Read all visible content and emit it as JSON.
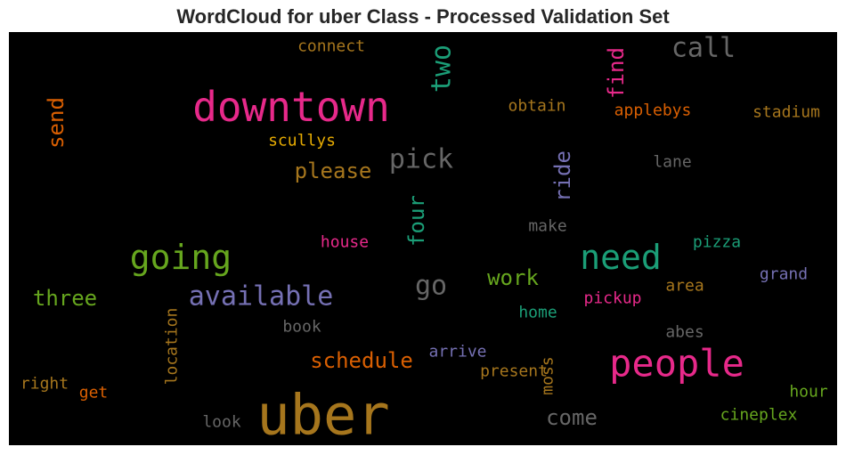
{
  "chart_title": "WordCloud for uber Class - Processed Validation Set",
  "chart_data": {
    "type": "wordcloud",
    "title": "WordCloud for uber Class - Processed Validation Set",
    "background": "#000000",
    "words": [
      {
        "text": "uber",
        "color": "#a6761d",
        "rotated": false
      },
      {
        "text": "downtown",
        "color": "#e7298a",
        "rotated": false
      },
      {
        "text": "people",
        "color": "#e7298a",
        "rotated": false
      },
      {
        "text": "need",
        "color": "#1b9e77",
        "rotated": false
      },
      {
        "text": "going",
        "color": "#66a61e",
        "rotated": false
      },
      {
        "text": "available",
        "color": "#7570b3",
        "rotated": false
      },
      {
        "text": "pick",
        "color": "#666666",
        "rotated": false
      },
      {
        "text": "call",
        "color": "#666666",
        "rotated": false
      },
      {
        "text": "two",
        "color": "#1b9e77",
        "rotated": true
      },
      {
        "text": "go",
        "color": "#666666",
        "rotated": false
      },
      {
        "text": "schedule",
        "color": "#d95f02",
        "rotated": false
      },
      {
        "text": "three",
        "color": "#66a61e",
        "rotated": false
      },
      {
        "text": "come",
        "color": "#666666",
        "rotated": false
      },
      {
        "text": "please",
        "color": "#a6761d",
        "rotated": false
      },
      {
        "text": "four",
        "color": "#1b9e77",
        "rotated": true
      },
      {
        "text": "ride",
        "color": "#7570b3",
        "rotated": true
      },
      {
        "text": "find",
        "color": "#e7298a",
        "rotated": true
      },
      {
        "text": "work",
        "color": "#66a61e",
        "rotated": false
      },
      {
        "text": "send",
        "color": "#d95f02",
        "rotated": true
      },
      {
        "text": "connect",
        "color": "#a6761d",
        "rotated": false
      },
      {
        "text": "obtain",
        "color": "#a6761d",
        "rotated": false
      },
      {
        "text": "applebys",
        "color": "#d95f02",
        "rotated": false
      },
      {
        "text": "stadium",
        "color": "#a6761d",
        "rotated": false
      },
      {
        "text": "scullys",
        "color": "#e6ab02",
        "rotated": false
      },
      {
        "text": "lane",
        "color": "#666666",
        "rotated": false
      },
      {
        "text": "make",
        "color": "#666666",
        "rotated": false
      },
      {
        "text": "house",
        "color": "#e7298a",
        "rotated": false
      },
      {
        "text": "pizza",
        "color": "#1b9e77",
        "rotated": false
      },
      {
        "text": "grand",
        "color": "#7570b3",
        "rotated": false
      },
      {
        "text": "area",
        "color": "#a6761d",
        "rotated": false
      },
      {
        "text": "pickup",
        "color": "#e7298a",
        "rotated": false
      },
      {
        "text": "home",
        "color": "#1b9e77",
        "rotated": false
      },
      {
        "text": "book",
        "color": "#666666",
        "rotated": false
      },
      {
        "text": "location",
        "color": "#a6761d",
        "rotated": true
      },
      {
        "text": "abes",
        "color": "#666666",
        "rotated": false
      },
      {
        "text": "arrive",
        "color": "#7570b3",
        "rotated": false
      },
      {
        "text": "present",
        "color": "#a6761d",
        "rotated": false
      },
      {
        "text": "moss",
        "color": "#a6761d",
        "rotated": true
      },
      {
        "text": "right",
        "color": "#a6761d",
        "rotated": false
      },
      {
        "text": "get",
        "color": "#d95f02",
        "rotated": false
      },
      {
        "text": "hour",
        "color": "#66a61e",
        "rotated": false
      },
      {
        "text": "cineplex",
        "color": "#66a61e",
        "rotated": false
      },
      {
        "text": "look",
        "color": "#666666",
        "rotated": false
      }
    ]
  }
}
